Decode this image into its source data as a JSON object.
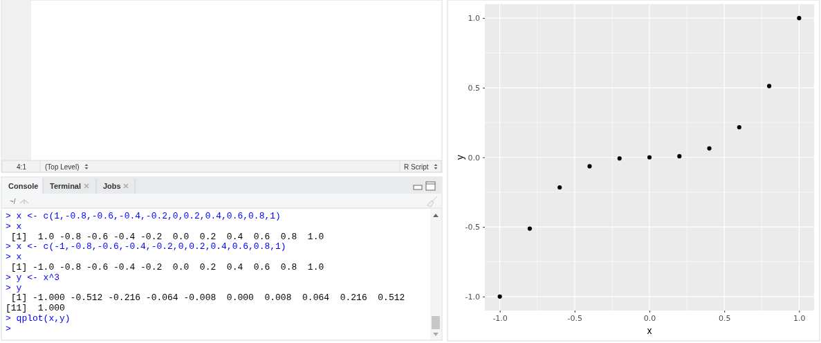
{
  "chart_data": {
    "type": "scatter",
    "xlabel": "x",
    "ylabel": "y",
    "x": [
      -1,
      -0.8,
      -0.6,
      -0.4,
      -0.2,
      0,
      0.2,
      0.4,
      0.6,
      0.8,
      1
    ],
    "series": [
      {
        "color": "#000000",
        "values": [
          -1,
          -0.512,
          -0.216,
          -0.064,
          -0.008,
          0,
          0.008,
          0.064,
          0.216,
          0.512,
          1
        ]
      }
    ],
    "xlim": [
      -1.1,
      1.1
    ],
    "ylim": [
      -1.1,
      1.1
    ],
    "xticks": [
      {
        "value": -1,
        "label": "-1.0"
      },
      {
        "value": -0.5,
        "label": "-0.5"
      },
      {
        "value": 0,
        "label": "0.0"
      },
      {
        "value": 0.5,
        "label": "0.5"
      },
      {
        "value": 1,
        "label": "1.0"
      }
    ],
    "yticks": [
      {
        "value": -1,
        "label": "-1.0"
      },
      {
        "value": -0.5,
        "label": "-0.5"
      },
      {
        "value": 0,
        "label": "0.0"
      },
      {
        "value": 0.5,
        "label": "0.5"
      },
      {
        "value": 1,
        "label": "1.0"
      }
    ],
    "grid": true,
    "marker": "circle",
    "annotations": [
      "4:1",
      "(Top Level)",
      "R Script",
      "Console",
      "Terminal",
      "Jobs",
      "~/",
      "> x <- c(1,-0.8,-0.6,-0.4,-0.2,0,0.2,0.4,0.6,0.8,1)",
      "> x",
      " [1]  1.0 -0.8 -0.6 -0.4 -0.2  0.0  0.2  0.4  0.6  0.8  1.0",
      "> x <- c(-1,-0.8,-0.6,-0.4,-0.2,0,0.2,0.4,0.6,0.8,1)",
      "> x",
      " [1] -1.0 -0.8 -0.6 -0.4 -0.2  0.0  0.2  0.4  0.6  0.8  1.0",
      "> y <- x^3",
      "> y",
      " [1] -1.000 -0.512 -0.216 -0.064 -0.008  0.000  0.008  0.064  0.216  0.512",
      "[11]  1.000",
      "> qplot(x,y)",
      ">"
    ]
  }
}
